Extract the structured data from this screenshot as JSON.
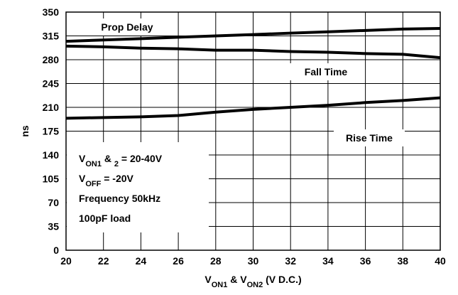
{
  "chart_data": {
    "type": "line",
    "x": [
      20,
      22,
      24,
      26,
      28,
      30,
      32,
      34,
      36,
      38,
      40
    ],
    "series": [
      {
        "name": "Prop Delay",
        "color": "#000000",
        "values": [
          307,
          309,
          311,
          313,
          315,
          317,
          319,
          321,
          323,
          325,
          326
        ]
      },
      {
        "name": "Fall Time",
        "color": "#000000",
        "values": [
          300,
          299,
          297,
          296,
          294,
          294,
          292,
          291,
          289,
          288,
          283
        ]
      },
      {
        "name": "Rise Time",
        "color": "#000000",
        "values": [
          194,
          195,
          196,
          198,
          203,
          207,
          210,
          213,
          217,
          220,
          224
        ]
      }
    ],
    "xlim": [
      20,
      40
    ],
    "xticks": [
      20,
      22,
      24,
      26,
      28,
      30,
      32,
      34,
      36,
      38,
      40
    ],
    "ylim": [
      0,
      350
    ],
    "yticks": [
      0,
      35,
      70,
      105,
      140,
      175,
      210,
      245,
      280,
      315,
      350
    ],
    "grid": true,
    "ylabel": "ns",
    "xlabel": [
      {
        "text": "V"
      },
      {
        "text": "ON1",
        "subscript": true
      },
      {
        "text": " & V"
      },
      {
        "text": "ON2",
        "subscript": true
      },
      {
        "text": " (V D.C.)"
      }
    ],
    "annotation": [
      [
        {
          "text": "V"
        },
        {
          "text": "ON1",
          "subscript": true
        },
        {
          "text": " & "
        },
        {
          "text": "2",
          "subscript": true
        },
        {
          "text": " = 20-40V"
        }
      ],
      [
        {
          "text": "V"
        },
        {
          "text": "OFF",
          "subscript": true
        },
        {
          "text": " = -20V"
        }
      ],
      [
        {
          "text": "Frequency 50kHz"
        }
      ],
      [
        {
          "text": "100pF load"
        }
      ]
    ]
  }
}
